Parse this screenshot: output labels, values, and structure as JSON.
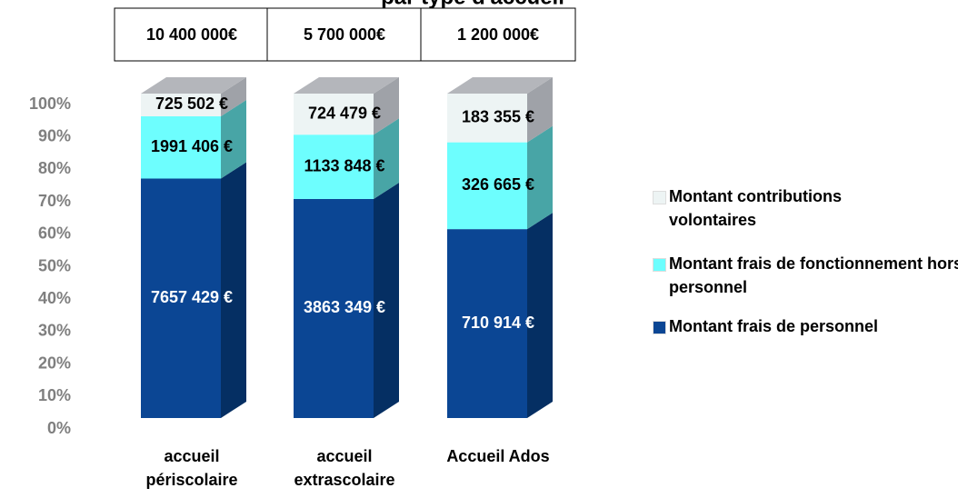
{
  "chart_data": {
    "type": "bar",
    "stack": "percent",
    "title": "par type d'accueil",
    "categories": [
      "accueil périscolaire",
      "accueil extrascolaire",
      "Accueil Ados"
    ],
    "annotations": [
      "10 400 000€",
      "5 700 000€",
      "1 200 000€"
    ],
    "series": [
      {
        "name": "Montant frais de personnel",
        "color": "#0b4694",
        "side_color": "#052f63",
        "label_color": "#ffffff",
        "values": [
          7657429,
          3863349,
          710914
        ],
        "value_labels": [
          "7657 429 €",
          "3863 349 €",
          "710 914 €"
        ]
      },
      {
        "name": "Montant frais de fonctionnement hors personnel",
        "color": "#6dfefe",
        "side_color": "#48a5a6",
        "label_color": "#000000",
        "values": [
          1991406,
          1133848,
          326665
        ],
        "value_labels": [
          "1991 406 €",
          "1133 848 €",
          "326 665 €"
        ]
      },
      {
        "name": "Montant contributions volontaires",
        "color": "#edf4f4",
        "side_color": "#9fa2a8",
        "label_color": "#000000",
        "values": [
          725502,
          724479,
          183355
        ],
        "value_labels": [
          "725 502 €",
          "724 479 €",
          "183 355 €"
        ]
      }
    ],
    "ylim": [
      0,
      100
    ],
    "yticks": [
      {
        "value": 0,
        "label": "0%"
      },
      {
        "value": 10,
        "label": "10%"
      },
      {
        "value": 20,
        "label": "20%"
      },
      {
        "value": 30,
        "label": "30%"
      },
      {
        "value": 40,
        "label": "40%"
      },
      {
        "value": 50,
        "label": "50%"
      },
      {
        "value": 60,
        "label": "60%"
      },
      {
        "value": 70,
        "label": "70%"
      },
      {
        "value": 80,
        "label": "80%"
      },
      {
        "value": 90,
        "label": "90%"
      },
      {
        "value": 100,
        "label": "100%"
      }
    ],
    "legend": "right"
  }
}
